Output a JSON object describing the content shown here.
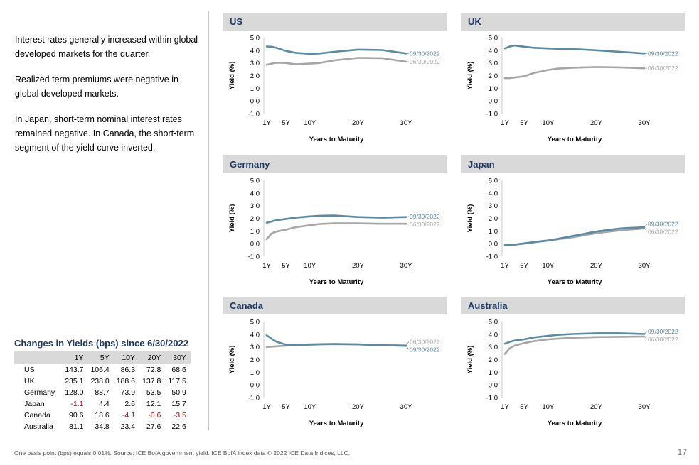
{
  "intro": {
    "paragraphs": [
      "Interest rates generally increased within global developed markets for the quarter.",
      "Realized term premiums were negative in global developed markets.",
      "In Japan, short-term nominal interest rates remained negative. In Canada, the short-term segment of the yield curve inverted."
    ]
  },
  "changes_table": {
    "title": "Changes in Yields (bps) since 6/30/2022",
    "columns": [
      "1Y",
      "5Y",
      "10Y",
      "20Y",
      "30Y"
    ],
    "rows": [
      {
        "country": "US",
        "values": [
          "143.7",
          "106.4",
          "86.3",
          "72.8",
          "68.6"
        ]
      },
      {
        "country": "UK",
        "values": [
          "235.1",
          "238.0",
          "188.6",
          "137.8",
          "117.5"
        ]
      },
      {
        "country": "Germany",
        "values": [
          "128.0",
          "88.7",
          "73.9",
          "53.5",
          "50.9"
        ]
      },
      {
        "country": "Japan",
        "values": [
          "-1.1",
          "4.4",
          "2.6",
          "12.1",
          "15.7"
        ]
      },
      {
        "country": "Canada",
        "values": [
          "90.6",
          "18.6",
          "-4.1",
          "-0.6",
          "-3.5"
        ]
      },
      {
        "country": "Australia",
        "values": [
          "81.1",
          "34.8",
          "23.4",
          "27.6",
          "22.6"
        ]
      }
    ],
    "negative_color": "#c00000"
  },
  "footnote": "One basis point (bps) equals 0.01%. Source: ICE BofA government yield. ICE BofA index data © 2022 ICE Data Indices, LLC.",
  "page_number": "17",
  "colors": {
    "current": "#5a8aa6",
    "prior": "#a6a6a6",
    "header": "#d9d9d9",
    "title": "#1f3864"
  },
  "chart_data": [
    {
      "type": "line",
      "title": "US",
      "xlabel": "Years to Maturity",
      "ylabel": "Yield (%)",
      "xlim": [
        1,
        30
      ],
      "ylim": [
        -1.0,
        5.0
      ],
      "yticks": [
        "5.0",
        "4.0",
        "3.0",
        "2.0",
        "1.0",
        "0.0",
        "-1.0"
      ],
      "xticks": [
        {
          "v": 1,
          "label": "1Y"
        },
        {
          "v": 5,
          "label": "5Y"
        },
        {
          "v": 10,
          "label": "10Y"
        },
        {
          "v": 20,
          "label": "20Y"
        },
        {
          "v": 30,
          "label": "30Y"
        }
      ],
      "x": [
        1,
        2,
        3,
        5,
        7,
        10,
        12,
        15,
        20,
        25,
        30
      ],
      "series": [
        {
          "name": "09/30/2022",
          "values": [
            4.3,
            4.28,
            4.2,
            3.95,
            3.8,
            3.72,
            3.75,
            3.88,
            4.05,
            4.02,
            3.75
          ]
        },
        {
          "name": "06/30/2022",
          "values": [
            2.85,
            2.95,
            3.02,
            3.0,
            2.9,
            2.95,
            3.0,
            3.2,
            3.4,
            3.38,
            3.1
          ]
        }
      ]
    },
    {
      "type": "line",
      "title": "UK",
      "xlabel": "Years to Maturity",
      "ylabel": "Yield (%)",
      "xlim": [
        1,
        30
      ],
      "ylim": [
        -1.0,
        5.0
      ],
      "yticks": [
        "5.0",
        "4.0",
        "3.0",
        "2.0",
        "1.0",
        "0.0",
        "-1.0"
      ],
      "xticks": [
        {
          "v": 1,
          "label": "1Y"
        },
        {
          "v": 5,
          "label": "5Y"
        },
        {
          "v": 10,
          "label": "10Y"
        },
        {
          "v": 20,
          "label": "20Y"
        },
        {
          "v": 30,
          "label": "30Y"
        }
      ],
      "x": [
        1,
        2,
        3,
        5,
        7,
        10,
        12,
        15,
        20,
        25,
        30
      ],
      "series": [
        {
          "name": "09/30/2022",
          "values": [
            4.15,
            4.3,
            4.38,
            4.28,
            4.2,
            4.15,
            4.12,
            4.1,
            4.0,
            3.88,
            3.75
          ]
        },
        {
          "name": "06/30/2022",
          "values": [
            1.8,
            1.8,
            1.85,
            1.95,
            2.2,
            2.45,
            2.55,
            2.62,
            2.68,
            2.65,
            2.58
          ]
        }
      ]
    },
    {
      "type": "line",
      "title": "Germany",
      "xlabel": "Years to Maturity",
      "ylabel": "Yield (%)",
      "xlim": [
        1,
        30
      ],
      "ylim": [
        -1.0,
        5.0
      ],
      "yticks": [
        "5.0",
        "4.0",
        "3.0",
        "2.0",
        "1.0",
        "0.0",
        "-1.0"
      ],
      "xticks": [
        {
          "v": 1,
          "label": "1Y"
        },
        {
          "v": 5,
          "label": "5Y"
        },
        {
          "v": 10,
          "label": "10Y"
        },
        {
          "v": 20,
          "label": "20Y"
        },
        {
          "v": 30,
          "label": "30Y"
        }
      ],
      "x": [
        1,
        2,
        3,
        5,
        7,
        10,
        12,
        15,
        20,
        25,
        30
      ],
      "series": [
        {
          "name": "09/30/2022",
          "values": [
            1.65,
            1.75,
            1.85,
            1.95,
            2.05,
            2.15,
            2.2,
            2.22,
            2.1,
            2.05,
            2.1
          ]
        },
        {
          "name": "06/30/2022",
          "values": [
            0.35,
            0.8,
            0.95,
            1.1,
            1.3,
            1.45,
            1.55,
            1.6,
            1.6,
            1.57,
            1.57
          ]
        }
      ]
    },
    {
      "type": "line",
      "title": "Japan",
      "xlabel": "Years to Maturity",
      "ylabel": "Yield (%)",
      "xlim": [
        1,
        30
      ],
      "ylim": [
        -1.0,
        5.0
      ],
      "yticks": [
        "5.0",
        "4.0",
        "3.0",
        "2.0",
        "1.0",
        "0.0",
        "-1.0"
      ],
      "xticks": [
        {
          "v": 1,
          "label": "1Y"
        },
        {
          "v": 5,
          "label": "5Y"
        },
        {
          "v": 10,
          "label": "10Y"
        },
        {
          "v": 20,
          "label": "20Y"
        },
        {
          "v": 30,
          "label": "30Y"
        }
      ],
      "x": [
        1,
        2,
        3,
        5,
        7,
        10,
        12,
        15,
        20,
        25,
        30
      ],
      "series": [
        {
          "name": "09/30/2022",
          "values": [
            -0.12,
            -0.1,
            -0.08,
            0.02,
            0.12,
            0.25,
            0.38,
            0.6,
            0.95,
            1.2,
            1.3
          ]
        },
        {
          "name": "06/30/2022",
          "values": [
            -0.1,
            -0.09,
            -0.08,
            0.0,
            0.1,
            0.24,
            0.34,
            0.5,
            0.82,
            1.05,
            1.2
          ]
        }
      ]
    },
    {
      "type": "line",
      "title": "Canada",
      "xlabel": "Years to Maturity",
      "ylabel": "Yield (%)",
      "xlim": [
        1,
        30
      ],
      "ylim": [
        -1.0,
        5.0
      ],
      "yticks": [
        "5.0",
        "4.0",
        "3.0",
        "2.0",
        "1.0",
        "0.0",
        "-1.0"
      ],
      "xticks": [
        {
          "v": 1,
          "label": "1Y"
        },
        {
          "v": 5,
          "label": "5Y"
        },
        {
          "v": 10,
          "label": "10Y"
        },
        {
          "v": 20,
          "label": "20Y"
        },
        {
          "v": 30,
          "label": "30Y"
        }
      ],
      "x": [
        1,
        2,
        3,
        5,
        7,
        10,
        12,
        15,
        20,
        25,
        30
      ],
      "series": [
        {
          "name": "06/30/2022",
          "values": [
            3.0,
            3.02,
            3.05,
            3.1,
            3.15,
            3.2,
            3.22,
            3.24,
            3.2,
            3.15,
            3.12
          ]
        },
        {
          "name": "09/30/2022",
          "values": [
            3.92,
            3.65,
            3.42,
            3.18,
            3.15,
            3.17,
            3.2,
            3.22,
            3.2,
            3.13,
            3.08
          ]
        }
      ]
    },
    {
      "type": "line",
      "title": "Australia",
      "xlabel": "Years to Maturity",
      "ylabel": "Yield (%)",
      "xlim": [
        1,
        30
      ],
      "ylim": [
        -1.0,
        5.0
      ],
      "yticks": [
        "5.0",
        "4.0",
        "3.0",
        "2.0",
        "1.0",
        "0.0",
        "-1.0"
      ],
      "xticks": [
        {
          "v": 1,
          "label": "1Y"
        },
        {
          "v": 5,
          "label": "5Y"
        },
        {
          "v": 10,
          "label": "10Y"
        },
        {
          "v": 20,
          "label": "20Y"
        },
        {
          "v": 30,
          "label": "30Y"
        }
      ],
      "x": [
        1,
        2,
        3,
        5,
        7,
        10,
        12,
        15,
        20,
        25,
        30
      ],
      "series": [
        {
          "name": "09/30/2022",
          "values": [
            3.25,
            3.4,
            3.5,
            3.6,
            3.75,
            3.88,
            3.95,
            4.02,
            4.08,
            4.08,
            4.02
          ]
        },
        {
          "name": "06/30/2022",
          "values": [
            2.45,
            2.9,
            3.1,
            3.3,
            3.45,
            3.6,
            3.65,
            3.72,
            3.78,
            3.8,
            3.82
          ]
        }
      ]
    }
  ]
}
